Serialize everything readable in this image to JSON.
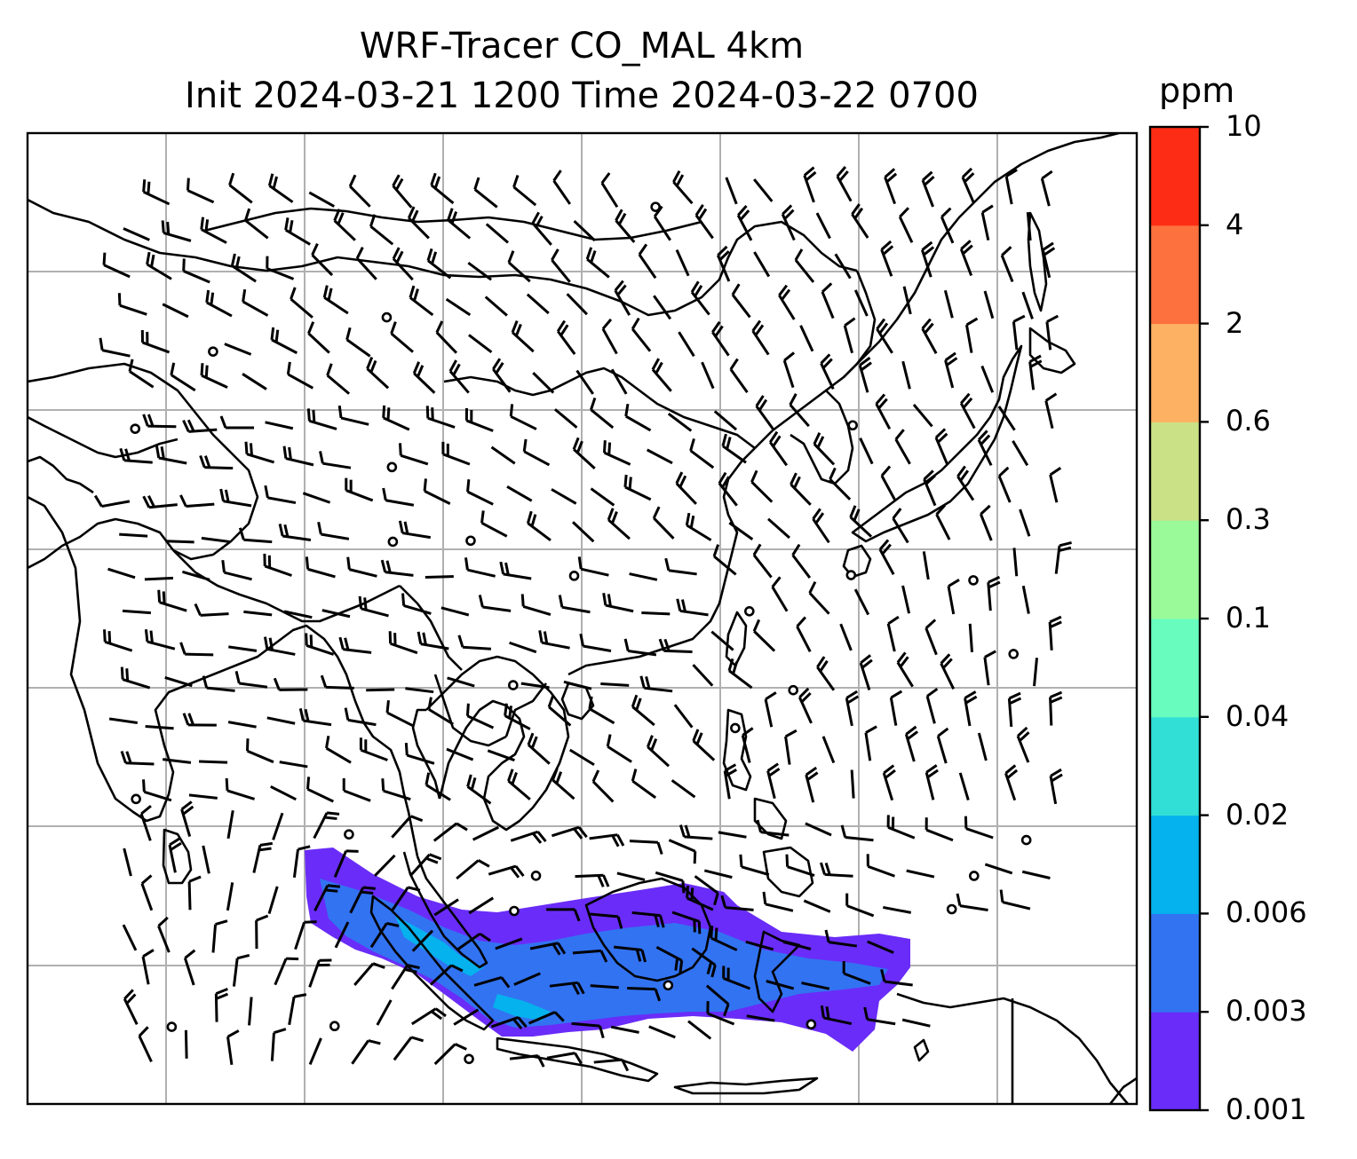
{
  "title": {
    "line1": "WRF-Tracer CO_MAL 4km",
    "line2": "Init 2024-03-21 1200 Time 2024-03-22 0700"
  },
  "colorbar": {
    "unit": "ppm",
    "ticks": [
      "0.001",
      "0.003",
      "0.006",
      "0.02",
      "0.04",
      "0.1",
      "0.3",
      "0.6",
      "2",
      "4",
      "10"
    ],
    "colors": [
      "#6a2cf8",
      "#3273f2",
      "#05b2ed",
      "#31dfd6",
      "#68fcbf",
      "#9afa9a",
      "#cbe186",
      "#fcb163",
      "#fd713e",
      "#fc2c15"
    ]
  },
  "map": {
    "grid": true,
    "plume_colors": {
      "low": "#6a2cf8",
      "mid": "#3273f2",
      "high": "#05b2ed"
    }
  }
}
